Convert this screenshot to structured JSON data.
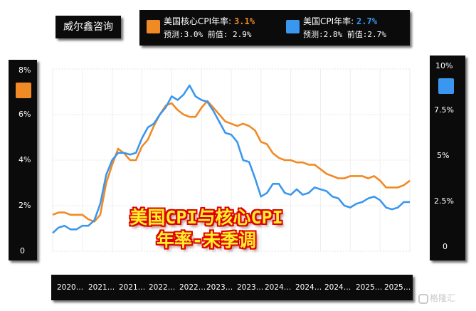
{
  "brand": {
    "label": "威尔鑫咨询"
  },
  "legend": {
    "core": {
      "label": "美国核心CPI年率:",
      "actual": "3.1%",
      "forecast_text": "预测:3.0% 前值: 2.9%",
      "color": "#f08a24"
    },
    "headline": {
      "label": "美国CPI年率:",
      "actual": "2.7%",
      "forecast_text": "预测:2.8% 前值:2.7%",
      "color": "#3a97f0"
    }
  },
  "overlay": {
    "line1": "美国CPI与核心CPI",
    "line2": "年率-未季调"
  },
  "watermark": {
    "text": "格隆汇"
  },
  "chart_data": {
    "type": "line",
    "title": "美国CPI与核心CPI 年率-未季调",
    "x_tick_labels": [
      "2020…",
      "2021…",
      "2021…",
      "2022…",
      "2022…",
      "2023…",
      "2023…",
      "2024…",
      "2024…",
      "2024…",
      "2025…",
      "2025…"
    ],
    "left_axis": {
      "ticks": [
        "8%",
        "6%",
        "4%",
        "2%",
        "0"
      ],
      "range": [
        0,
        8
      ],
      "series": "core"
    },
    "right_axis": {
      "ticks": [
        "10%",
        "7.5%",
        "5%",
        "2.5%",
        "0"
      ],
      "range": [
        0,
        10
      ],
      "series": "headline"
    },
    "grid": true,
    "x": [
      "2020-07",
      "2020-08",
      "2020-09",
      "2020-10",
      "2020-11",
      "2020-12",
      "2021-01",
      "2021-02",
      "2021-03",
      "2021-04",
      "2021-05",
      "2021-06",
      "2021-07",
      "2021-08",
      "2021-09",
      "2021-10",
      "2021-11",
      "2021-12",
      "2022-01",
      "2022-02",
      "2022-03",
      "2022-04",
      "2022-05",
      "2022-06",
      "2022-07",
      "2022-08",
      "2022-09",
      "2022-10",
      "2022-11",
      "2022-12",
      "2023-01",
      "2023-02",
      "2023-03",
      "2023-04",
      "2023-05",
      "2023-06",
      "2023-07",
      "2023-08",
      "2023-09",
      "2023-10",
      "2023-11",
      "2023-12",
      "2024-01",
      "2024-02",
      "2024-03",
      "2024-04",
      "2024-05",
      "2024-06",
      "2024-07",
      "2024-08",
      "2024-09",
      "2024-10",
      "2024-11",
      "2024-12",
      "2025-01",
      "2025-02",
      "2025-03",
      "2025-04",
      "2025-05",
      "2025-06",
      "2025-07"
    ],
    "series": [
      {
        "name": "美国核心CPI年率",
        "axis": "left",
        "values": [
          1.6,
          1.7,
          1.7,
          1.6,
          1.6,
          1.6,
          1.4,
          1.3,
          1.6,
          3.0,
          3.8,
          4.5,
          4.3,
          4.0,
          4.0,
          4.6,
          4.9,
          5.5,
          6.0,
          6.4,
          6.5,
          6.2,
          6.0,
          5.9,
          5.9,
          6.3,
          6.6,
          6.3,
          6.0,
          5.7,
          5.6,
          5.5,
          5.6,
          5.5,
          5.3,
          4.8,
          4.7,
          4.3,
          4.1,
          4.0,
          4.0,
          3.9,
          3.9,
          3.8,
          3.8,
          3.6,
          3.4,
          3.3,
          3.2,
          3.2,
          3.3,
          3.3,
          3.3,
          3.2,
          3.3,
          3.1,
          2.8,
          2.8,
          2.8,
          2.9,
          3.1
        ]
      },
      {
        "name": "美国CPI年率",
        "axis": "right",
        "values": [
          1.0,
          1.3,
          1.4,
          1.2,
          1.2,
          1.4,
          1.4,
          1.7,
          2.6,
          4.2,
          5.0,
          5.4,
          5.4,
          5.3,
          5.4,
          6.2,
          6.8,
          7.0,
          7.5,
          7.9,
          8.5,
          8.3,
          8.6,
          9.1,
          8.5,
          8.3,
          8.2,
          7.7,
          7.1,
          6.5,
          6.4,
          6.0,
          5.0,
          4.9,
          4.0,
          3.0,
          3.2,
          3.7,
          3.7,
          3.2,
          3.1,
          3.4,
          3.1,
          3.2,
          3.5,
          3.4,
          3.3,
          3.0,
          2.9,
          2.5,
          2.4,
          2.6,
          2.7,
          2.9,
          3.0,
          2.8,
          2.4,
          2.3,
          2.4,
          2.7,
          2.7
        ]
      }
    ]
  }
}
